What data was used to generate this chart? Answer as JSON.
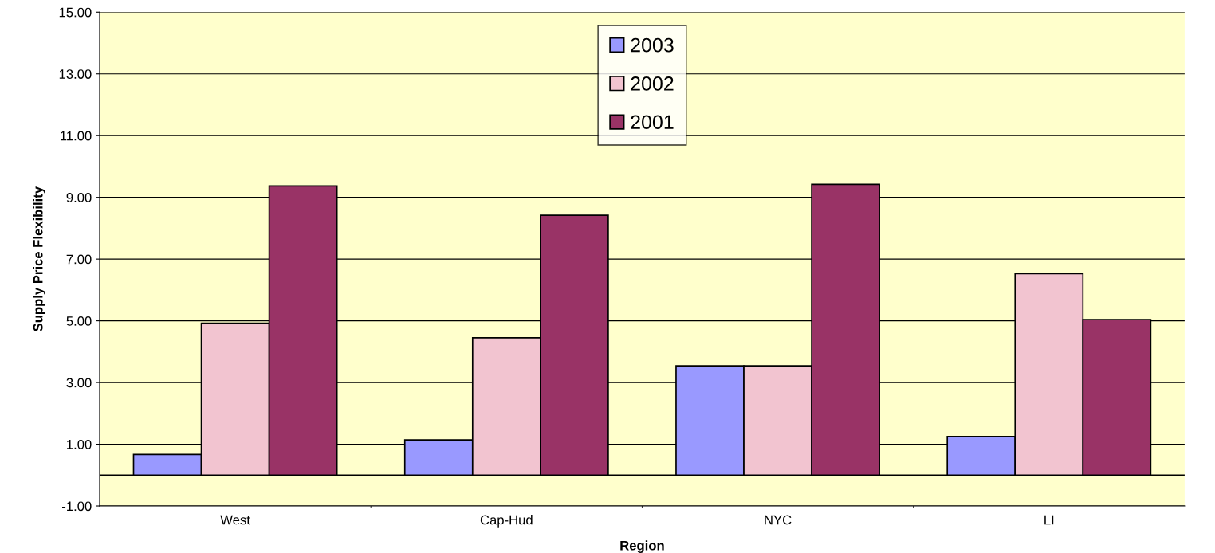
{
  "chart_data": {
    "type": "bar",
    "xlabel": "Region",
    "ylabel": "Supply Price Flexibility",
    "categories": [
      "West",
      "Cap-Hud",
      "NYC",
      "LI"
    ],
    "series": [
      {
        "name": "2003",
        "color": "#9999ff",
        "values": [
          0.67,
          1.14,
          3.54,
          1.25
        ]
      },
      {
        "name": "2002",
        "color": "#f2c4d0",
        "values": [
          4.92,
          4.45,
          3.54,
          6.53
        ]
      },
      {
        "name": "2001",
        "color": "#993366",
        "values": [
          9.37,
          8.42,
          9.42,
          5.04
        ]
      }
    ],
    "ylim": [
      -1,
      15
    ],
    "yticks": [
      {
        "value": -1,
        "label": "-1.00"
      },
      {
        "value": 1,
        "label": "1.00"
      },
      {
        "value": 3,
        "label": "3.00"
      },
      {
        "value": 5,
        "label": "5.00"
      },
      {
        "value": 7,
        "label": "7.00"
      },
      {
        "value": 9,
        "label": "9.00"
      },
      {
        "value": 11,
        "label": "11.00"
      },
      {
        "value": 13,
        "label": "13.00"
      },
      {
        "value": 15,
        "label": "15.00"
      }
    ],
    "grid": "y",
    "legend": "top"
  }
}
